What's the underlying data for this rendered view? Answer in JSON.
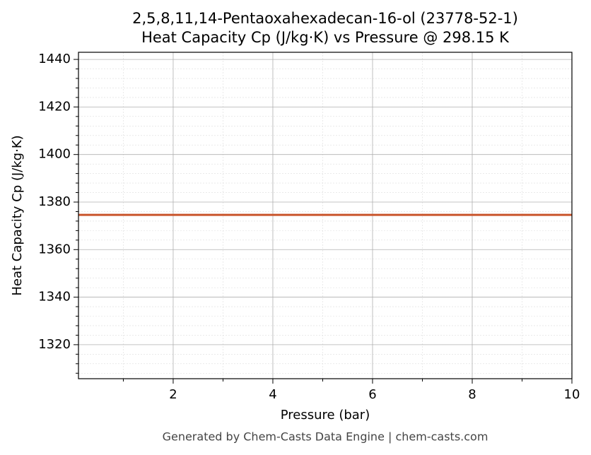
{
  "chart_data": {
    "type": "line",
    "title": "2,5,8,11,14-Pentaoxahexadecan-16-ol (23778-52-1)",
    "subtitle": "Heat Capacity Cp (J/kg·K) vs Pressure @ 298.15 K",
    "x_label": "Pressure (bar)",
    "y_label": "Heat Capacity Cp (J/kg·K)",
    "footer": "Generated by Chem-Casts Data Engine | chem-casts.com",
    "x": [
      0.1,
      10
    ],
    "series": [
      {
        "name": "Cp",
        "color": "#c9552b",
        "values": [
          1374.6,
          1374.6
        ]
      }
    ],
    "xlim": [
      0.1,
      10
    ],
    "ylim": [
      1305.7,
      1443
    ],
    "xticks": [
      2,
      4,
      6,
      8,
      10
    ],
    "yticks": [
      1320,
      1340,
      1360,
      1380,
      1400,
      1420,
      1440
    ],
    "xminor": [
      1,
      3,
      5,
      7,
      9
    ],
    "yminor": [
      1308,
      1312,
      1316,
      1324,
      1328,
      1332,
      1336,
      1344,
      1348,
      1352,
      1356,
      1364,
      1368,
      1372,
      1376,
      1384,
      1388,
      1392,
      1396,
      1404,
      1408,
      1412,
      1416,
      1424,
      1428,
      1432,
      1436
    ],
    "grid": true,
    "legend": false
  }
}
